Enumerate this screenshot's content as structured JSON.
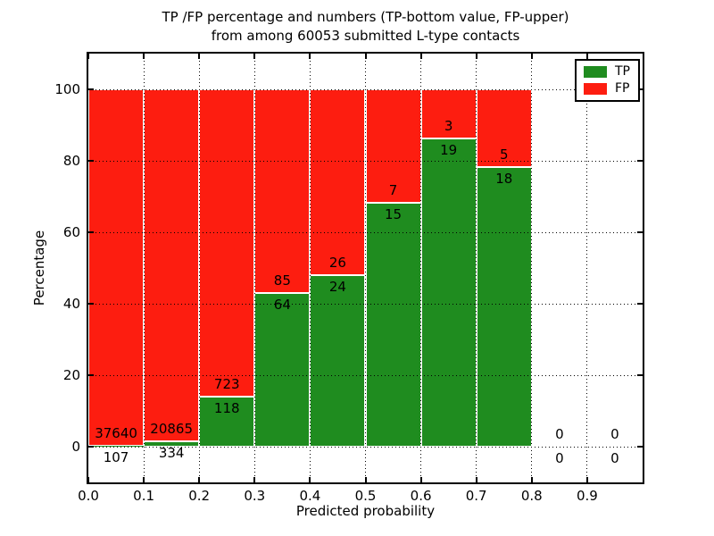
{
  "figure": {
    "title_line1": "TP /FP percentage and numbers (TP-bottom value, FP-upper)",
    "title_line2": "from among 60053 submitted L-type contacts",
    "xlabel": "Predicted probability",
    "ylabel": "Percentage"
  },
  "legend": {
    "position": "upper right",
    "items": [
      {
        "label": "TP",
        "color": "#1f8c1f"
      },
      {
        "label": "FP",
        "color": "#fd1d10"
      }
    ]
  },
  "colors": {
    "tp": "#1f8c1f",
    "fp": "#fd1d10",
    "grid": "#000000",
    "axes": "#000000",
    "background": "#ffffff",
    "bar_edge": "#ffffff"
  },
  "chart_data": {
    "type": "bar",
    "stacked": true,
    "title": "TP /FP percentage and numbers (TP-bottom value, FP-upper) from among 60053 submitted L-type contacts",
    "xlabel": "Predicted probability",
    "ylabel": "Percentage",
    "xlim": [
      0.0,
      1.0
    ],
    "ylim": [
      -10,
      110
    ],
    "grid": true,
    "legend_position": "upper right",
    "x_tick_labels": [
      "0.0",
      "0.1",
      "0.2",
      "0.3",
      "0.4",
      "0.5",
      "0.6",
      "0.7",
      "0.8",
      "0.9"
    ],
    "y_tick_values": [
      0,
      20,
      40,
      60,
      80,
      100
    ],
    "series": [
      {
        "name": "TP",
        "values_counts": [
          107,
          334,
          118,
          64,
          24,
          15,
          19,
          18,
          0,
          0
        ]
      },
      {
        "name": "FP",
        "values_counts": [
          37640,
          20865,
          723,
          85,
          26,
          7,
          3,
          5,
          0,
          0
        ]
      }
    ],
    "bins": [
      {
        "x_range": [
          0.0,
          0.1
        ],
        "tp": 107,
        "fp": 37640,
        "tp_pct": 0.28,
        "fp_pct": 99.72
      },
      {
        "x_range": [
          0.1,
          0.2
        ],
        "tp": 334,
        "fp": 20865,
        "tp_pct": 1.58,
        "fp_pct": 98.42
      },
      {
        "x_range": [
          0.2,
          0.3
        ],
        "tp": 118,
        "fp": 723,
        "tp_pct": 14.03,
        "fp_pct": 85.97
      },
      {
        "x_range": [
          0.3,
          0.4
        ],
        "tp": 64,
        "fp": 85,
        "tp_pct": 42.95,
        "fp_pct": 57.05
      },
      {
        "x_range": [
          0.4,
          0.5
        ],
        "tp": 24,
        "fp": 26,
        "tp_pct": 48.0,
        "fp_pct": 52.0
      },
      {
        "x_range": [
          0.5,
          0.6
        ],
        "tp": 15,
        "fp": 7,
        "tp_pct": 68.18,
        "fp_pct": 31.82
      },
      {
        "x_range": [
          0.6,
          0.7
        ],
        "tp": 19,
        "fp": 3,
        "tp_pct": 86.36,
        "fp_pct": 13.64
      },
      {
        "x_range": [
          0.7,
          0.8
        ],
        "tp": 18,
        "fp": 5,
        "tp_pct": 78.26,
        "fp_pct": 21.74
      },
      {
        "x_range": [
          0.8,
          0.9
        ],
        "tp": 0,
        "fp": 0,
        "tp_pct": 0,
        "fp_pct": 0
      },
      {
        "x_range": [
          0.9,
          1.0
        ],
        "tp": 0,
        "fp": 0,
        "tp_pct": 0,
        "fp_pct": 0
      }
    ]
  }
}
